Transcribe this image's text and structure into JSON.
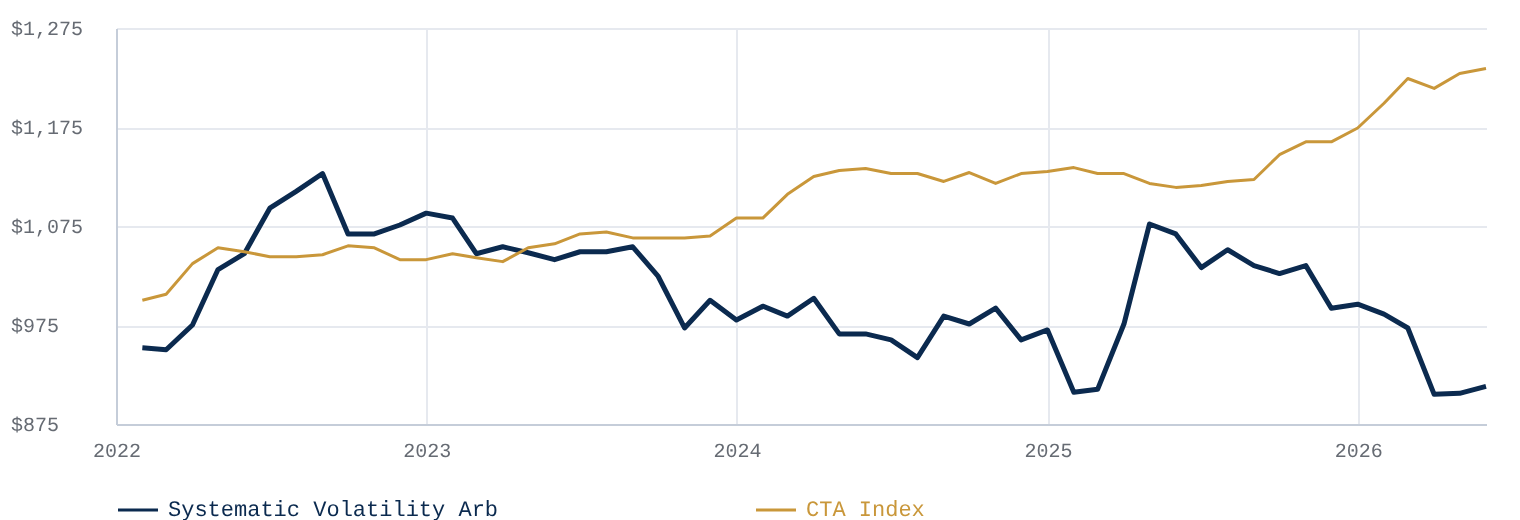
{
  "chart_data": {
    "type": "line",
    "x": [
      "2022-02",
      "2022-03",
      "2022-04",
      "2022-05",
      "2022-06",
      "2022-07",
      "2022-08",
      "2022-09",
      "2022-10",
      "2022-11",
      "2022-12",
      "2023-01",
      "2023-02",
      "2023-03",
      "2023-04",
      "2023-05",
      "2023-06",
      "2023-07",
      "2023-08",
      "2023-09",
      "2023-10",
      "2023-11",
      "2023-12",
      "2024-01",
      "2024-02",
      "2024-03",
      "2024-04",
      "2024-05",
      "2024-06",
      "2024-07",
      "2024-08",
      "2024-09",
      "2024-10",
      "2024-11",
      "2024-12",
      "2025-01",
      "2025-02",
      "2025-03",
      "2025-04",
      "2025-05",
      "2025-06",
      "2025-07",
      "2025-08",
      "2025-09",
      "2025-10",
      "2025-11",
      "2025-12",
      "2026-01",
      "2026-02",
      "2026-03",
      "2026-04",
      "2026-05",
      "2026-06"
    ],
    "series": [
      {
        "name": "Systematic Volatility Arb",
        "color": "#0b2a4f",
        "values": [
          952,
          950,
          975,
          1031,
          1047,
          1093,
          1110,
          1128,
          1067,
          1067,
          1076,
          1088,
          1083,
          1047,
          1054,
          1048,
          1041,
          1049,
          1049,
          1054,
          1024,
          972,
          1000,
          980,
          994,
          984,
          1002,
          966,
          966,
          960,
          942,
          984,
          976,
          992,
          960,
          970,
          907,
          910,
          976,
          1077,
          1067,
          1033,
          1051,
          1035,
          1027,
          1035,
          992,
          996,
          986,
          972,
          905,
          906,
          913
        ]
      },
      {
        "name": "CTA Index",
        "color": "#c9973a",
        "values": [
          1000,
          1006,
          1037,
          1053,
          1049,
          1044,
          1044,
          1046,
          1055,
          1053,
          1041,
          1041,
          1047,
          1043,
          1039,
          1053,
          1057,
          1067,
          1069,
          1063,
          1063,
          1063,
          1065,
          1083,
          1083,
          1107,
          1125,
          1131,
          1133,
          1128,
          1128,
          1120,
          1129,
          1118,
          1128,
          1130,
          1134,
          1128,
          1128,
          1118,
          1114,
          1116,
          1120,
          1122,
          1147,
          1160,
          1160,
          1174,
          1199,
          1224,
          1214,
          1229,
          1234
        ]
      }
    ],
    "xlim": [
      "2022-01",
      "2026-06"
    ],
    "xticks": [
      "2022",
      "2023",
      "2024",
      "2025",
      "2026"
    ],
    "ylim": [
      875,
      1275
    ],
    "yticks": [
      {
        "value": 875,
        "label": "$875"
      },
      {
        "value": 975,
        "label": "$975"
      },
      {
        "value": 1075,
        "label": "$1,075"
      },
      {
        "value": 1175,
        "label": "$1,175"
      },
      {
        "value": 1275,
        "label": "$1,275"
      }
    ],
    "grid": true,
    "legend": "bottom",
    "marker": "none",
    "line_style": "solid"
  }
}
